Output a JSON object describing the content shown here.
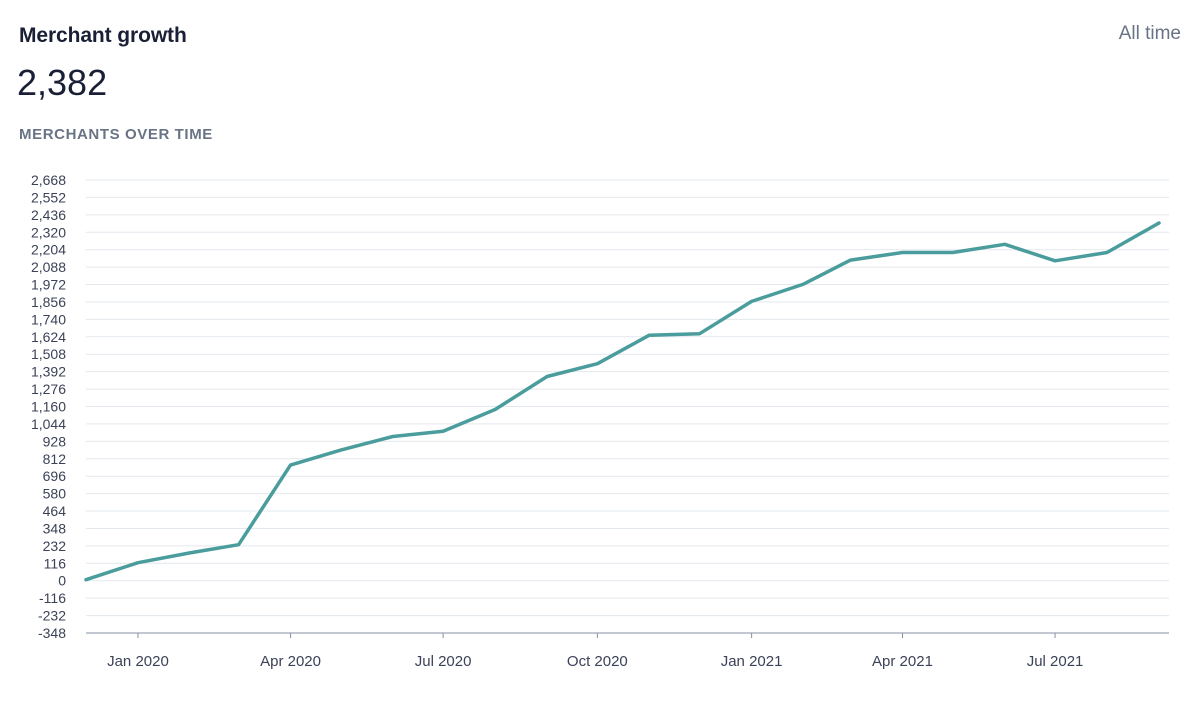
{
  "header": {
    "title": "Merchant growth",
    "range": "All time"
  },
  "summary": {
    "value": "2,382",
    "label": "MERCHANTS OVER TIME"
  },
  "colors": {
    "line": "#4a9d9c",
    "grid": "#e3e8ee",
    "axis": "#8792a2",
    "text": "#3c4257"
  },
  "chart_data": {
    "type": "line",
    "title": "MERCHANTS OVER TIME",
    "xlabel": "",
    "ylabel": "",
    "ylim": [
      -348,
      2668
    ],
    "y_ticks": [
      2668,
      2552,
      2436,
      2320,
      2204,
      2088,
      1972,
      1856,
      1740,
      1624,
      1508,
      1392,
      1276,
      1160,
      1044,
      928,
      812,
      696,
      580,
      464,
      348,
      232,
      116,
      0,
      -116,
      -232,
      -348
    ],
    "y_tick_labels": [
      "2,668",
      "2,552",
      "2,436",
      "2,320",
      "2,204",
      "2,088",
      "1,972",
      "1,856",
      "1,740",
      "1,624",
      "1,508",
      "1,392",
      "1,276",
      "1,160",
      "1,044",
      "928",
      "812",
      "696",
      "580",
      "464",
      "348",
      "232",
      "116",
      "0",
      "-116",
      "-232",
      "-348"
    ],
    "x_ticks": [
      {
        "date": "2020-01-01",
        "label": "Jan 2020"
      },
      {
        "date": "2020-04-01",
        "label": "Apr 2020"
      },
      {
        "date": "2020-07-01",
        "label": "Jul 2020"
      },
      {
        "date": "2020-10-01",
        "label": "Oct 2020"
      },
      {
        "date": "2021-01-01",
        "label": "Jan 2021"
      },
      {
        "date": "2021-04-01",
        "label": "Apr 2021"
      },
      {
        "date": "2021-07-01",
        "label": "Jul 2021"
      }
    ],
    "xlim": [
      "2019-12-01",
      "2021-09-01"
    ],
    "grid": true,
    "series": [
      {
        "points": [
          {
            "x": "2019-12-01",
            "y": 7
          },
          {
            "x": "2020-01-01",
            "y": 120
          },
          {
            "x": "2020-02-01",
            "y": 185
          },
          {
            "x": "2020-03-01",
            "y": 240
          },
          {
            "x": "2020-04-01",
            "y": 770
          },
          {
            "x": "2020-05-01",
            "y": 870
          },
          {
            "x": "2020-06-01",
            "y": 960
          },
          {
            "x": "2020-07-01",
            "y": 995
          },
          {
            "x": "2020-08-01",
            "y": 1140
          },
          {
            "x": "2020-09-01",
            "y": 1360
          },
          {
            "x": "2020-10-01",
            "y": 1445
          },
          {
            "x": "2020-11-01",
            "y": 1635
          },
          {
            "x": "2020-12-01",
            "y": 1645
          },
          {
            "x": "2021-01-01",
            "y": 1860
          },
          {
            "x": "2021-02-01",
            "y": 1975
          },
          {
            "x": "2021-03-01",
            "y": 2135
          },
          {
            "x": "2021-04-01",
            "y": 2185
          },
          {
            "x": "2021-05-01",
            "y": 2185
          },
          {
            "x": "2021-06-01",
            "y": 2240
          },
          {
            "x": "2021-07-01",
            "y": 2130
          },
          {
            "x": "2021-08-01",
            "y": 2185
          },
          {
            "x": "2021-09-01",
            "y": 2382
          }
        ]
      }
    ]
  }
}
